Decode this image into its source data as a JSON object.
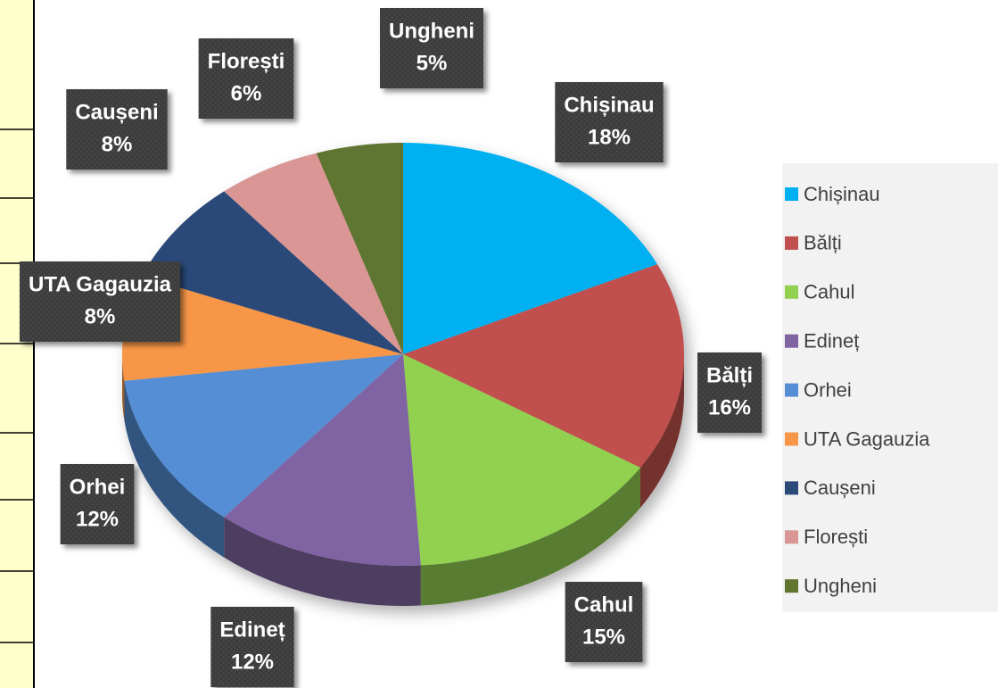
{
  "chart_data": {
    "type": "pie",
    "categories": [
      "Chișinau",
      "Bălți",
      "Cahul",
      "Edineț",
      "Orhei",
      "UTA Gagauzia",
      "Caușeni",
      "Florești",
      "Ungheni"
    ],
    "values": [
      18,
      16,
      15,
      12,
      12,
      8,
      8,
      6,
      5
    ],
    "value_labels": [
      "18%",
      "16%",
      "15%",
      "12%",
      "12%",
      "8%",
      "8%",
      "6%",
      "5%"
    ],
    "colors": [
      "#00b0f0",
      "#c0504d",
      "#92d050",
      "#8064a2",
      "#558ed5",
      "#f79646",
      "#2b4a78",
      "#d99694",
      "#5f7530"
    ],
    "legend": "right"
  }
}
